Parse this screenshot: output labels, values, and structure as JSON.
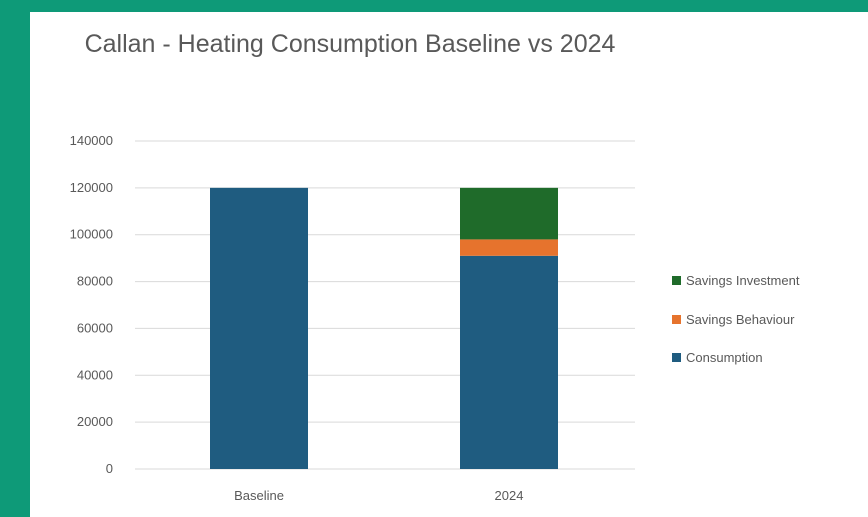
{
  "colors": {
    "frame": "#0e9a78",
    "card": "#ffffff",
    "gridline": "#d9d9d9",
    "text": "#595959"
  },
  "chart_data": {
    "type": "bar",
    "stacked": true,
    "title": "Callan - Heating Consumption Baseline vs 2024",
    "xlabel": "",
    "ylabel": "",
    "categories": [
      "Baseline",
      "2024"
    ],
    "ylim": [
      0,
      140000
    ],
    "yticks": [
      0,
      20000,
      40000,
      60000,
      80000,
      100000,
      120000,
      140000
    ],
    "grid": true,
    "legend_position": "right",
    "series": [
      {
        "name": "Consumption",
        "color": "#1f5c80",
        "values": [
          120000,
          91000
        ]
      },
      {
        "name": "Savings Behaviour",
        "color": "#e6732d",
        "values": [
          0,
          7000
        ]
      },
      {
        "name": "Savings Investment",
        "color": "#1f6b2a",
        "values": [
          0,
          22000
        ]
      }
    ],
    "legend_order": [
      "Savings Investment",
      "Savings Behaviour",
      "Consumption"
    ]
  }
}
